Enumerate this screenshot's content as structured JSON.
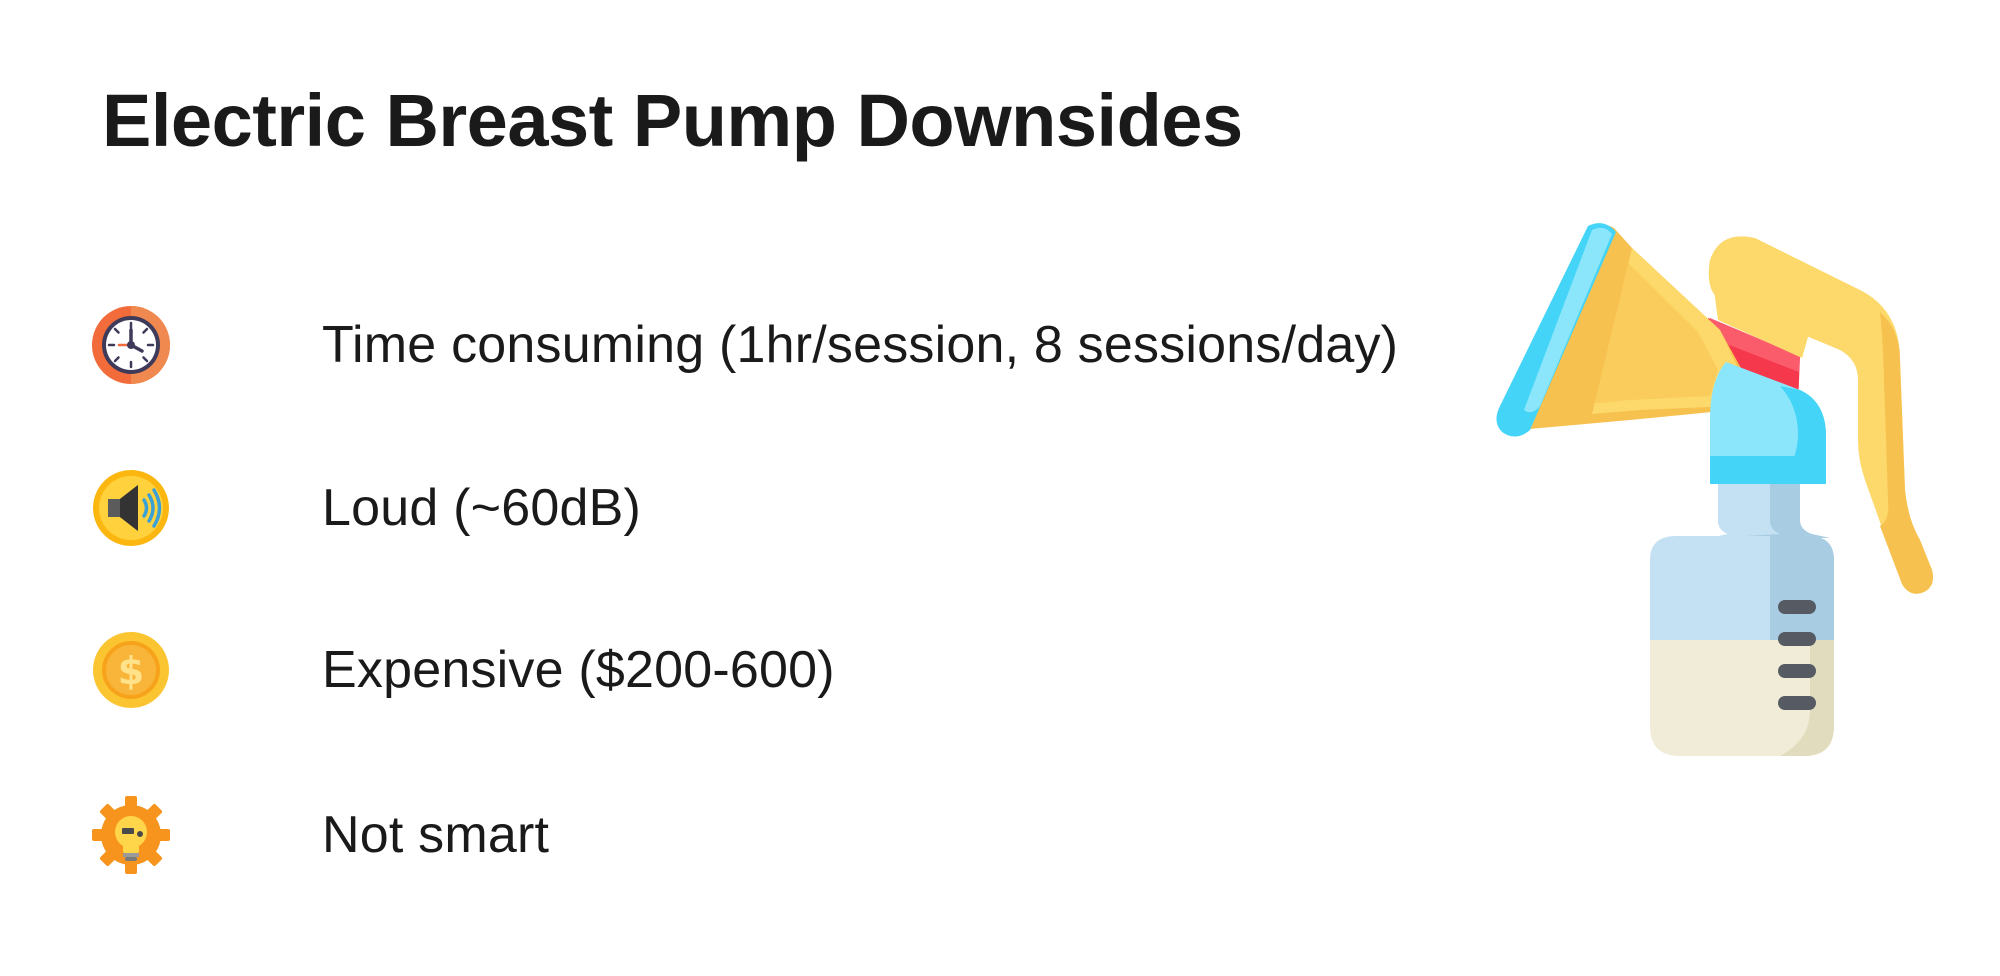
{
  "slide": {
    "title": "Electric Breast Pump Downsides"
  },
  "downsides": [
    {
      "icon": "stopwatch-icon",
      "label": "Time consuming (1hr/session, 8 sessions/day)"
    },
    {
      "icon": "speaker-icon",
      "label": "Loud (~60dB)"
    },
    {
      "icon": "dollar-coin-icon",
      "label": "Expensive ($200-600)"
    },
    {
      "icon": "lightbulb-gear-icon",
      "label": "Not smart"
    }
  ],
  "illustration": {
    "icon": "breast-pump-icon"
  },
  "colors": {
    "text": "#1a1a1a",
    "background": "#ffffff",
    "pump_yellow": "#fcd96a",
    "pump_orange": "#f7c150",
    "pump_blue": "#44d4f7",
    "pump_red": "#f6384d",
    "milk": "#f0ecd8"
  }
}
